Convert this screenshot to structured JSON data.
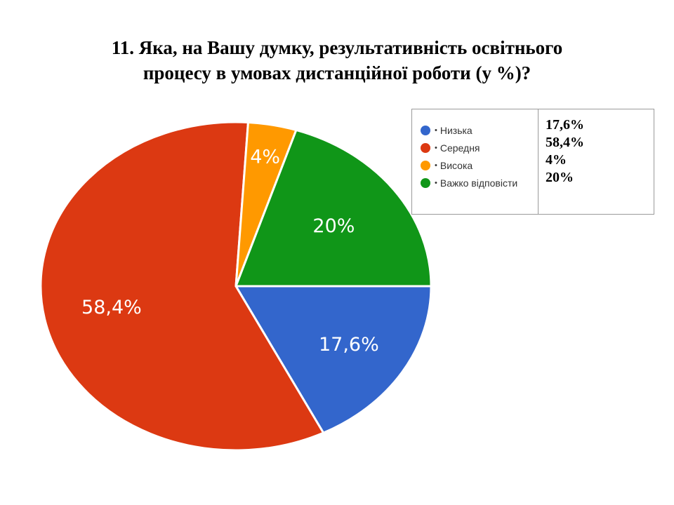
{
  "title_lines": [
    "11. Яка, на Вашу думку, результативність освітнього",
    "процесу в умовах дистанційної роботи (у %)?"
  ],
  "chart_data": {
    "type": "pie",
    "title": "11. Яка, на Вашу думку, результативність освітнього процесу в умовах дистанційної роботи (у %)?",
    "categories": [
      "Низька",
      "Середня",
      "Висока",
      "Важко відповісти"
    ],
    "values": [
      17.6,
      58.4,
      4,
      20
    ],
    "data_labels": [
      "17,6%",
      "58,4%",
      "4%",
      "20%"
    ],
    "colors": [
      "#3366cc",
      "#dc3912",
      "#ff9900",
      "#109618"
    ],
    "label_colors": [
      "#ffffff",
      "#ffffff",
      "#ffffff",
      "#ffffff"
    ],
    "legend_position": "right"
  },
  "legend": {
    "bullet": "•",
    "items": [
      "Низька",
      "Середня",
      "Висока",
      "Важко відповісти"
    ],
    "values": [
      "17,6%",
      "58,4%",
      "4%",
      "20%"
    ]
  }
}
